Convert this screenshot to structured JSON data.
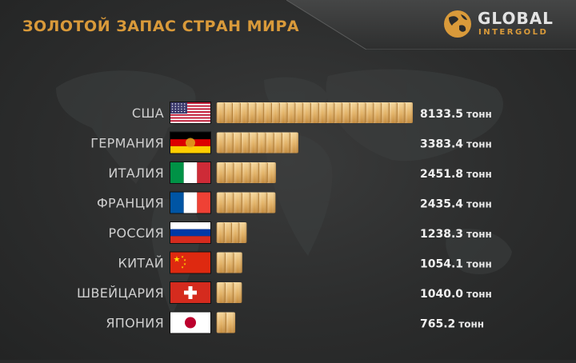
{
  "header": {
    "title": "ЗОЛОТОЙ ЗАПАС СТРАН МИРА"
  },
  "logo": {
    "name": "GLOBAL",
    "sub": "INTERGOLD"
  },
  "colors": {
    "accent": "#d99a3a",
    "bar_light": "#f6d79a",
    "bar_dark": "#c38a3c",
    "background": "#2a2b2b"
  },
  "chart_data": {
    "type": "bar",
    "orientation": "horizontal",
    "unit": "тонн",
    "categories": [
      "США",
      "ГЕРМАНИЯ",
      "ИТАЛИЯ",
      "ФРАНЦИЯ",
      "РОССИЯ",
      "КИТАЙ",
      "ШВЕЙЦАРИЯ",
      "ЯПОНИЯ"
    ],
    "flags": [
      "us-flag-icon",
      "de-flag-icon",
      "it-flag-icon",
      "fr-flag-icon",
      "ru-flag-icon",
      "cn-flag-icon",
      "ch-flag-icon",
      "jp-flag-icon"
    ],
    "values": [
      8133.5,
      3383.4,
      2451.8,
      2435.4,
      1238.3,
      1054.1,
      1040.0,
      765.2
    ],
    "value_labels": [
      "8133.5",
      "3383.4",
      "2451.8",
      "2435.4",
      "1238.3",
      "1054.1",
      "1040.0",
      "765.2"
    ],
    "xlim": [
      0,
      8133.5
    ],
    "grid": false,
    "legend": "none"
  }
}
